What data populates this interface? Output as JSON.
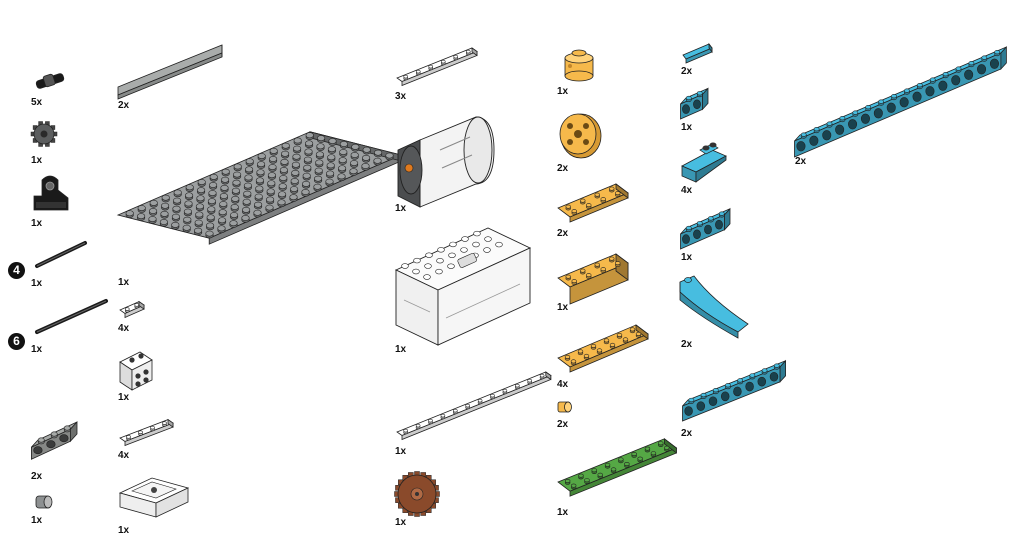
{
  "colors": {
    "gray": "#9a9d9e",
    "dark_gray": "#3b3d3f",
    "black": "#1a1a1a",
    "white": "#ffffff",
    "yellow": "#f6b94b",
    "blue": "#47bde0",
    "green": "#55a845",
    "brown": "#8a4a2b",
    "outline": "#222222"
  },
  "parts": [
    {
      "id": "pin-connector",
      "icon": "pin-connector-icon",
      "qty": "5x"
    },
    {
      "id": "bush-gear",
      "icon": "bush-gear-icon",
      "qty": "1x"
    },
    {
      "id": "distance-sensor-mount",
      "icon": "sensor-mount-icon",
      "qty": "1x"
    },
    {
      "id": "axle-4",
      "icon": "axle-icon",
      "qty": "1x",
      "badge": "4"
    },
    {
      "id": "axle-6",
      "icon": "axle-icon",
      "qty": "1x",
      "badge": "6"
    },
    {
      "id": "gray-beam-3",
      "icon": "technic-brick-icon",
      "qty": "2x"
    },
    {
      "id": "gray-bush",
      "icon": "bush-icon",
      "qty": "1x"
    },
    {
      "id": "gray-tile-long",
      "icon": "tile-icon",
      "qty": "2x"
    },
    {
      "id": "gray-baseplate",
      "icon": "baseplate-icon",
      "qty": "1x"
    },
    {
      "id": "white-plate-1x2",
      "icon": "plate-icon",
      "qty": "4x"
    },
    {
      "id": "white-bracket",
      "icon": "bracket-icon",
      "qty": "1x"
    },
    {
      "id": "white-plate-1x4",
      "icon": "plate-icon",
      "qty": "4x"
    },
    {
      "id": "white-hub-frame",
      "icon": "frame-icon",
      "qty": "1x"
    },
    {
      "id": "white-plate-1x6",
      "icon": "plate-icon",
      "qty": "3x"
    },
    {
      "id": "motor",
      "icon": "motor-icon",
      "qty": "1x"
    },
    {
      "id": "battery-hub",
      "icon": "hub-icon",
      "qty": "1x"
    },
    {
      "id": "white-plate-1x12",
      "icon": "plate-icon",
      "qty": "1x"
    },
    {
      "id": "brown-gear",
      "icon": "gear-icon",
      "qty": "1x"
    },
    {
      "id": "yellow-round-brick",
      "icon": "round-brick-icon",
      "qty": "1x"
    },
    {
      "id": "yellow-wheel",
      "icon": "wheel-icon",
      "qty": "2x"
    },
    {
      "id": "yellow-plate-2x4",
      "icon": "plate-icon",
      "qty": "2x"
    },
    {
      "id": "yellow-brick-2x4",
      "icon": "brick-icon",
      "qty": "1x"
    },
    {
      "id": "yellow-plate-2x6",
      "icon": "plate-icon",
      "qty": "4x"
    },
    {
      "id": "yellow-bush",
      "icon": "bush-icon",
      "qty": "2x"
    },
    {
      "id": "green-plate-2x8",
      "icon": "plate-icon",
      "qty": "1x"
    },
    {
      "id": "blue-tile-1x2",
      "icon": "tile-icon",
      "qty": "2x"
    },
    {
      "id": "blue-beam-1x2",
      "icon": "technic-brick-icon",
      "qty": "1x"
    },
    {
      "id": "blue-slope",
      "icon": "slope-icon",
      "qty": "4x"
    },
    {
      "id": "blue-beam-1x4",
      "icon": "technic-brick-icon",
      "qty": "1x"
    },
    {
      "id": "blue-curved-slope",
      "icon": "curved-slope-icon",
      "qty": "2x"
    },
    {
      "id": "blue-beam-1x8",
      "icon": "technic-brick-icon",
      "qty": "2x"
    },
    {
      "id": "blue-beam-1x16",
      "icon": "technic-brick-icon",
      "qty": "2x"
    }
  ]
}
